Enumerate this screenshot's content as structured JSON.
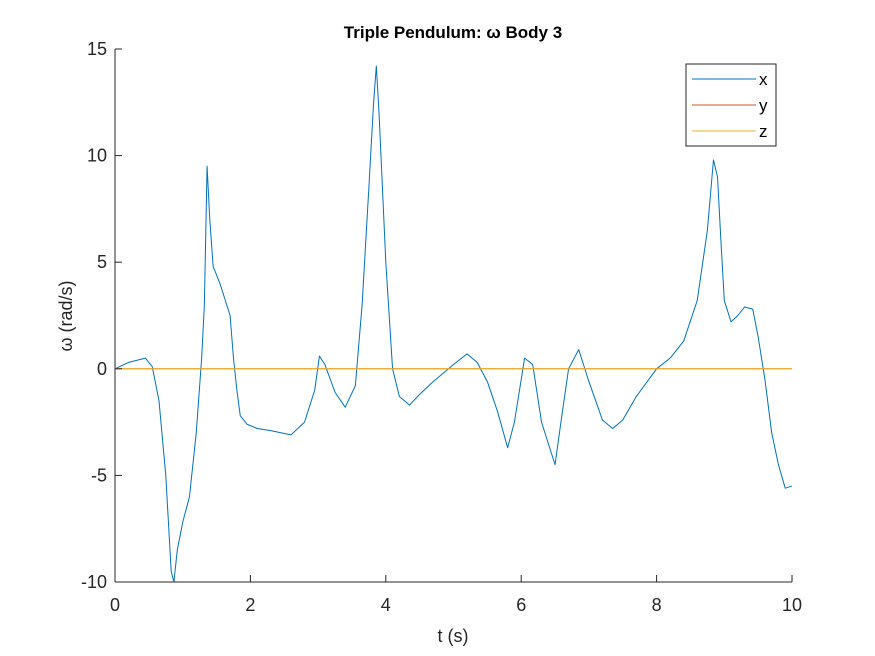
{
  "chart_data": {
    "type": "line",
    "title": "Triple Pendulum: ω Body 3",
    "xlabel": "t (s)",
    "ylabel": "ω (rad/s)",
    "xlim": [
      0,
      10
    ],
    "ylim": [
      -10,
      15
    ],
    "xticks": [
      0,
      2,
      4,
      6,
      8,
      10
    ],
    "yticks": [
      -10,
      -5,
      0,
      5,
      10,
      15
    ],
    "xtick_labels": [
      "0",
      "2",
      "4",
      "6",
      "8",
      "10"
    ],
    "ytick_labels": [
      "-10",
      "-5",
      "0",
      "5",
      "10",
      "15"
    ],
    "grid": false,
    "legend_position": "top-right",
    "colors": {
      "x": "#0072BD",
      "y": "#D95319",
      "z": "#EDB120",
      "axes": "#262626"
    },
    "series": [
      {
        "name": "x",
        "x": [
          0,
          0.2,
          0.45,
          0.55,
          0.65,
          0.75,
          0.83,
          0.87,
          0.92,
          1.0,
          1.1,
          1.2,
          1.28,
          1.32,
          1.36,
          1.4,
          1.45,
          1.55,
          1.7,
          1.75,
          1.8,
          1.85,
          1.95,
          2.1,
          2.3,
          2.6,
          2.8,
          2.95,
          3.02,
          3.1,
          3.25,
          3.4,
          3.55,
          3.65,
          3.75,
          3.82,
          3.86,
          3.9,
          4.0,
          4.1,
          4.2,
          4.35,
          4.5,
          4.7,
          5.0,
          5.2,
          5.35,
          5.5,
          5.65,
          5.8,
          5.9,
          6.05,
          6.17,
          6.3,
          6.5,
          6.6,
          6.7,
          6.85,
          7.0,
          7.2,
          7.35,
          7.5,
          7.7,
          8.0,
          8.2,
          8.4,
          8.6,
          8.75,
          8.84,
          8.9,
          8.95,
          9.0,
          9.1,
          9.2,
          9.3,
          9.42,
          9.5,
          9.6,
          9.7,
          9.8,
          9.9,
          10.0
        ],
        "values": [
          0,
          0.3,
          0.5,
          0.1,
          -1.5,
          -5,
          -9.5,
          -10,
          -8.5,
          -7.2,
          -6,
          -3,
          0.5,
          3,
          9.5,
          7,
          4.8,
          4,
          2.5,
          0.5,
          -1,
          -2.2,
          -2.6,
          -2.8,
          -2.9,
          -3.1,
          -2.5,
          -1,
          0.6,
          0.2,
          -1.1,
          -1.8,
          -0.8,
          3,
          8.5,
          12.5,
          14.2,
          12,
          5,
          0,
          -1.3,
          -1.7,
          -1.2,
          -0.6,
          0.2,
          0.7,
          0.3,
          -0.6,
          -2,
          -3.7,
          -2.5,
          0.5,
          0.2,
          -2.5,
          -4.5,
          -2.2,
          0,
          0.9,
          -0.6,
          -2.4,
          -2.8,
          -2.4,
          -1.3,
          0,
          0.5,
          1.3,
          3.2,
          6.5,
          9.8,
          9,
          6,
          3.2,
          2.2,
          2.5,
          2.9,
          2.8,
          1.5,
          -0.5,
          -3,
          -4.5,
          -5.6,
          -5.5
        ]
      },
      {
        "name": "y",
        "x": [
          0,
          10
        ],
        "values": [
          0,
          0
        ]
      },
      {
        "name": "z",
        "x": [
          0,
          10
        ],
        "values": [
          0,
          0
        ]
      }
    ]
  }
}
